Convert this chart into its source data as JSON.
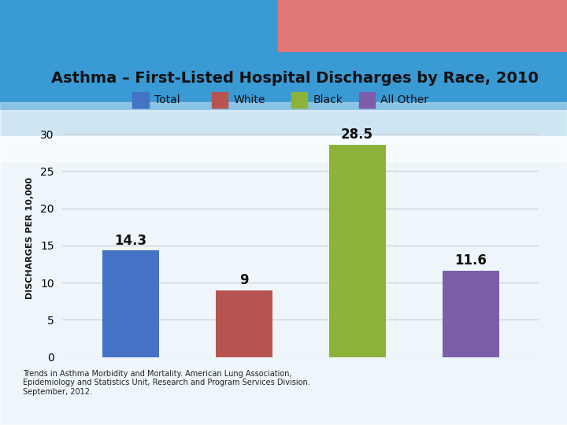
{
  "title": "Asthma – First-Listed Hospital Discharges by Race, 2010",
  "categories": [
    "Total",
    "White",
    "Black",
    "All Other"
  ],
  "values": [
    14.3,
    9.0,
    28.5,
    11.6
  ],
  "bar_colors": [
    "#4472C4",
    "#B85450",
    "#8DB23A",
    "#7B5EA7"
  ],
  "ylabel": "DISCHARGES PER 10,000",
  "ylim": [
    0,
    32
  ],
  "yticks": [
    0,
    5,
    10,
    15,
    20,
    25,
    30
  ],
  "legend_labels": [
    "Total",
    "White",
    "Black",
    "All Other"
  ],
  "legend_colors": [
    "#4472C4",
    "#B85450",
    "#8DB23A",
    "#7B5EA7"
  ],
  "value_labels": [
    "14.3",
    "9",
    "28.5",
    "11.6"
  ],
  "footnote": "Trends in Asthma Morbidity and Mortality. American Lung Association,\nEpidemiology and Statistics Unit, Research and Program Services Division.\nSeptember, 2012.",
  "title_fontsize": 14,
  "legend_fontsize": 10,
  "tick_fontsize": 10,
  "ylabel_fontsize": 8,
  "grid_color": "#CCCCCC",
  "bar_width": 0.5,
  "value_label_fontsize": 12,
  "sky_blue": "#3A9AD4",
  "sky_light": "#87CEEB",
  "cloud_white": "#F0F8FF",
  "red_strip": "#E07878",
  "chart_bg": "#F5F5F5"
}
